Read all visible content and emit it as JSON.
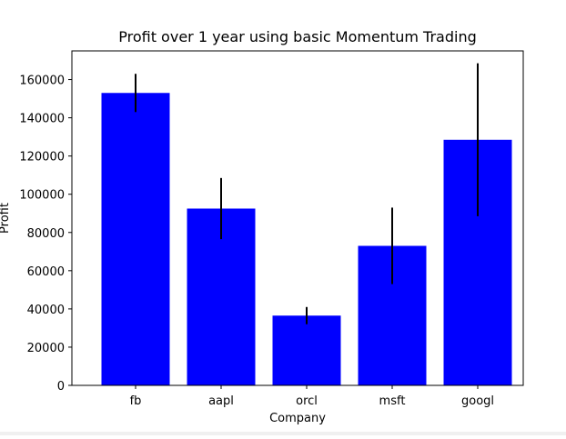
{
  "chart_data": {
    "type": "bar",
    "title": "Profit over 1 year using basic Momentum Trading",
    "xlabel": "Company",
    "ylabel": "Profit",
    "categories": [
      "fb",
      "aapl",
      "orcl",
      "msft",
      "googl"
    ],
    "values": [
      153000,
      92500,
      36500,
      73000,
      128500
    ],
    "error": [
      10000,
      16000,
      4500,
      20000,
      40000
    ],
    "ylim": [
      0,
      175000
    ],
    "yticks": [
      0,
      20000,
      40000,
      60000,
      80000,
      100000,
      120000,
      140000,
      160000
    ],
    "bar_color": "#0000ff",
    "error_color": "#000000",
    "grid": false
  }
}
